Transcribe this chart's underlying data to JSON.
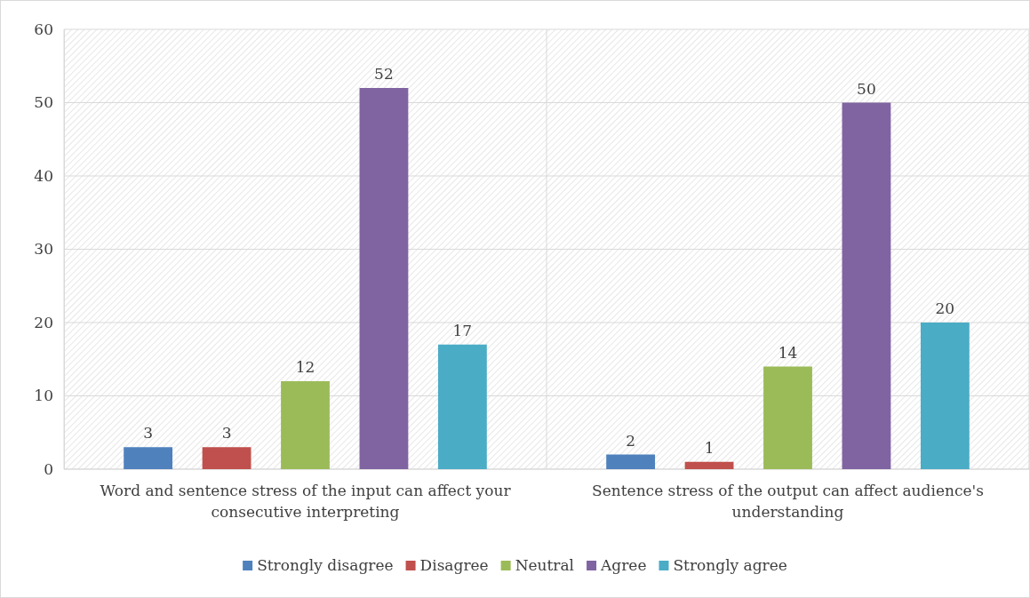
{
  "chart_data": {
    "type": "bar",
    "categories": [
      "Word and sentence stress of the input can affect your consecutive interpreting",
      "Sentence stress of the output can affect audience's understanding"
    ],
    "series": [
      {
        "name": "Strongly disagree",
        "color": "#4f81bd",
        "values": [
          3,
          2
        ]
      },
      {
        "name": "Disagree",
        "color": "#c0504d",
        "values": [
          3,
          1
        ]
      },
      {
        "name": "Neutral",
        "color": "#9bbb59",
        "values": [
          12,
          14
        ]
      },
      {
        "name": "Agree",
        "color": "#8064a2",
        "values": [
          52,
          50
        ]
      },
      {
        "name": "Strongly agree",
        "color": "#4bacc6",
        "values": [
          17,
          20
        ]
      }
    ],
    "ylim": [
      0,
      60
    ],
    "yticks": [
      0,
      10,
      20,
      30,
      40,
      50,
      60
    ],
    "grid": "y",
    "legend": "bottom",
    "data_labels": true
  }
}
